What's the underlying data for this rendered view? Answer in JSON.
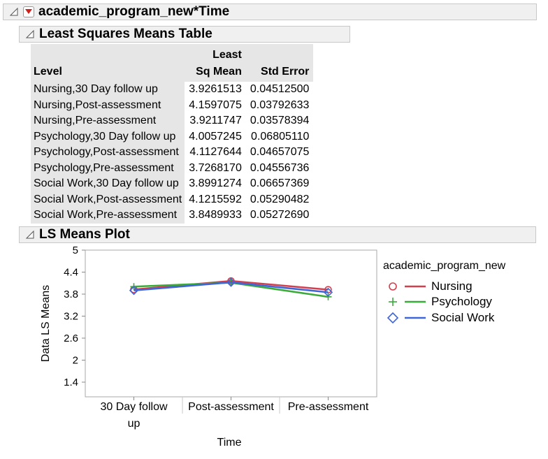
{
  "report": {
    "main_title": "academic_program_new*Time",
    "lsm_title": "Least Squares Means Table",
    "plot_title": "LS Means Plot"
  },
  "table": {
    "headers": {
      "level": "Level",
      "mean_line1": "Least",
      "mean_line2": "Sq Mean",
      "std_error": "Std Error"
    },
    "rows": [
      {
        "level": "Nursing,30 Day follow up",
        "mean": "3.9261513",
        "se": "0.04512500"
      },
      {
        "level": "Nursing,Post-assessment",
        "mean": "4.1597075",
        "se": "0.03792633"
      },
      {
        "level": "Nursing,Pre-assessment",
        "mean": "3.9211747",
        "se": "0.03578394"
      },
      {
        "level": "Psychology,30 Day follow up",
        "mean": "4.0057245",
        "se": "0.06805110"
      },
      {
        "level": "Psychology,Post-assessment",
        "mean": "4.1127644",
        "se": "0.04657075"
      },
      {
        "level": "Psychology,Pre-assessment",
        "mean": "3.7268170",
        "se": "0.04556736"
      },
      {
        "level": "Social Work,30 Day follow up",
        "mean": "3.8991274",
        "se": "0.06657369"
      },
      {
        "level": "Social Work,Post-assessment",
        "mean": "4.1215592",
        "se": "0.05290482"
      },
      {
        "level": "Social Work,Pre-assessment",
        "mean": "3.8489933",
        "se": "0.05272690"
      }
    ]
  },
  "legend": {
    "title": "academic_program_new",
    "items": [
      "Nursing",
      "Psychology",
      "Social Work"
    ]
  },
  "colors": {
    "nursing": "#d0404f",
    "psychology": "#3aaa3a",
    "social_work": "#3f66d6"
  },
  "chart_data": {
    "type": "line",
    "categories": [
      "30 Day follow up",
      "Post-assessment",
      "Pre-assessment"
    ],
    "series": [
      {
        "name": "Nursing",
        "marker": "circle",
        "values": [
          3.9261513,
          4.1597075,
          3.9211747
        ]
      },
      {
        "name": "Psychology",
        "marker": "plus",
        "values": [
          4.0057245,
          4.1127644,
          3.726817
        ]
      },
      {
        "name": "Social Work",
        "marker": "diamond",
        "values": [
          3.8991274,
          4.1215592,
          3.8489933
        ]
      }
    ],
    "xlabel": "Time",
    "ylabel": "Data LS Means",
    "yticks": [
      "1.4",
      "2",
      "2.6",
      "3.2",
      "3.8",
      "4.4",
      "5"
    ],
    "ylim": [
      1.0,
      5.0
    ],
    "grid": false,
    "legend_position": "right"
  }
}
